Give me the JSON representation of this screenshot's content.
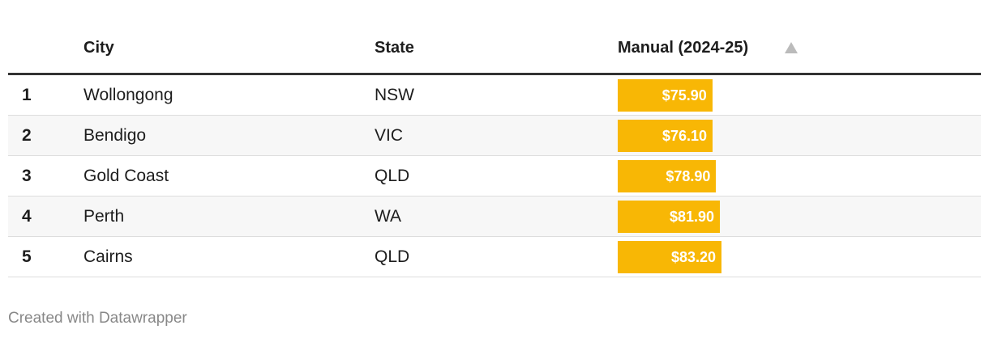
{
  "table": {
    "headers": [
      "City",
      "State",
      "Manual (2024-25)"
    ],
    "rows": [
      [
        "1",
        "Wollongong",
        "NSW"
      ],
      [
        "2",
        "Bendigo",
        "VIC"
      ],
      [
        "3",
        "Gold Coast",
        "QLD"
      ],
      [
        "4",
        "Perth",
        "WA"
      ],
      [
        "5",
        "Cairns",
        "QLD"
      ]
    ],
    "values": [
      75.9,
      76.1,
      78.9,
      81.9,
      83.2
    ],
    "value_labels": [
      "$75.90",
      "$76.10",
      "$78.90",
      "$81.90",
      "$83.20"
    ],
    "bar_color": "#f8b705"
  },
  "footer": "Created with Datawrapper"
}
